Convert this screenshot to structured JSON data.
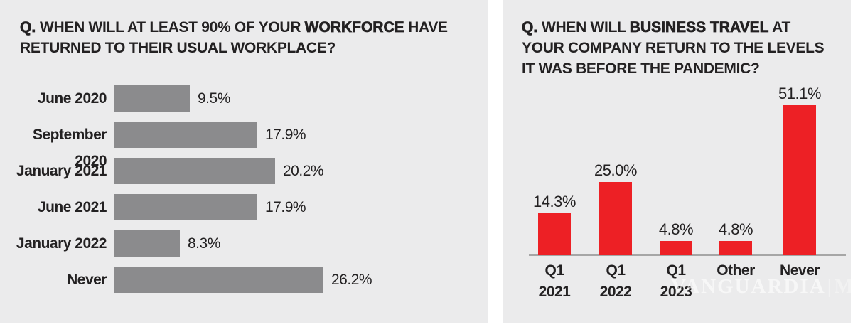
{
  "page": {
    "background": "#ffffff",
    "panel_background": "#ebebec"
  },
  "colors": {
    "bar_gray": "#8b8b8d",
    "bar_red": "#ed2025",
    "text_dark": "#232122",
    "axis_gray": "#a6a6a6"
  },
  "watermark": {
    "name": "VANGUARDIA",
    "divider": "|",
    "suffix": "MX"
  },
  "chart_data": [
    {
      "type": "bar",
      "orientation": "horizontal",
      "title": "Q. WHEN WILL AT LEAST 90% OF YOUR WORKFORCE HAVE RETURNED TO THEIR USUAL WORKPLACE?",
      "title_segments": [
        {
          "text": "Q. ",
          "bold": true
        },
        {
          "text": "WHEN WILL AT LEAST 90% OF YOUR ",
          "bold": false
        },
        {
          "text": "WORKFORCE",
          "bold": true
        },
        {
          "text": " HAVE RETURNED TO THEIR USUAL WORKPLACE?",
          "bold": false
        }
      ],
      "categories": [
        "June 2020",
        "September 2020",
        "January 2021",
        "June 2021",
        "January 2022",
        "Never"
      ],
      "values": [
        9.5,
        17.9,
        20.2,
        17.9,
        8.3,
        26.2
      ],
      "value_labels": [
        "9.5%",
        "17.9%",
        "20.2%",
        "17.9%",
        "8.3%",
        "26.2%"
      ],
      "bar_color": "#8b8b8d",
      "xlim": [
        0,
        30
      ],
      "grid": false,
      "legend": null
    },
    {
      "type": "bar",
      "orientation": "vertical",
      "title": "Q. WHEN WILL BUSINESS TRAVEL AT YOUR COMPANY RETURN TO THE LEVELS IT WAS BEFORE THE PANDEMIC?",
      "title_segments": [
        {
          "text": "Q. ",
          "bold": true
        },
        {
          "text": "WHEN WILL ",
          "bold": false
        },
        {
          "text": "BUSINESS TRAVEL",
          "bold": true
        },
        {
          "text": " AT YOUR COMPANY RETURN TO THE LEVELS IT WAS BEFORE THE PANDEMIC?",
          "bold": false
        }
      ],
      "categories": [
        "Q1 2021",
        "Q1 2022",
        "Q1 2023",
        "Other",
        "Never"
      ],
      "category_lines": [
        [
          "Q1",
          "2021"
        ],
        [
          "Q1",
          "2022"
        ],
        [
          "Q1",
          "2023"
        ],
        [
          "Other"
        ],
        [
          "Never"
        ]
      ],
      "values": [
        14.3,
        25.0,
        4.8,
        4.8,
        51.1
      ],
      "value_labels": [
        "14.3%",
        "25.0%",
        "4.8%",
        "4.8%",
        "51.1%"
      ],
      "bar_color": "#ed2025",
      "ylim": [
        0,
        55
      ],
      "grid": false,
      "legend": null
    }
  ]
}
